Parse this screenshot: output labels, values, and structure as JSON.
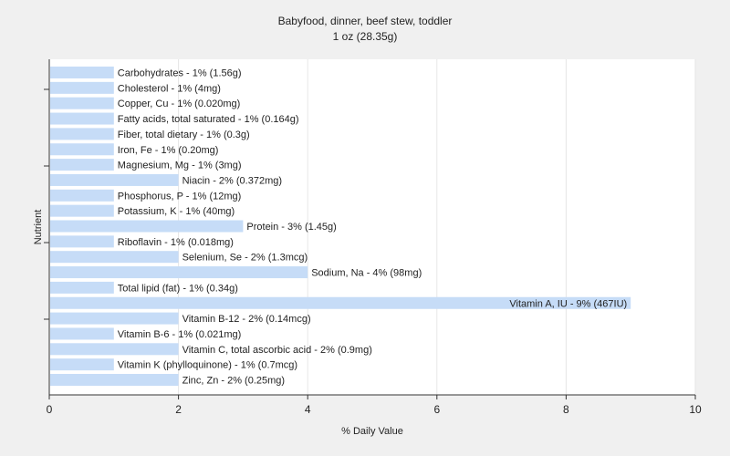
{
  "chart_data": {
    "type": "bar",
    "orientation": "horizontal",
    "title": "Babyfood, dinner, beef stew, toddler",
    "subtitle": "1 oz (28.35g)",
    "xlabel": "% Daily Value",
    "ylabel": "Nutrient",
    "xlim": [
      0,
      10
    ],
    "xticks": [
      0,
      2,
      4,
      6,
      8,
      10
    ],
    "grid": true,
    "bar_color": "#c6dcf7",
    "grid_color": "#ffffff",
    "background": "#f0f0f0",
    "categories": [
      "Carbohydrates",
      "Cholesterol",
      "Copper, Cu",
      "Fatty acids, total saturated",
      "Fiber, total dietary",
      "Iron, Fe",
      "Magnesium, Mg",
      "Niacin",
      "Phosphorus, P",
      "Potassium, K",
      "Protein",
      "Riboflavin",
      "Selenium, Se",
      "Sodium, Na",
      "Total lipid (fat)",
      "Vitamin A, IU",
      "Vitamin B-12",
      "Vitamin B-6",
      "Vitamin C, total ascorbic acid",
      "Vitamin K (phylloquinone)",
      "Zinc, Zn"
    ],
    "values": [
      1,
      1,
      1,
      1,
      1,
      1,
      1,
      2,
      1,
      1,
      3,
      1,
      2,
      4,
      1,
      9,
      2,
      1,
      2,
      1,
      2
    ],
    "labels": [
      "Carbohydrates - 1% (1.56g)",
      "Cholesterol - 1% (4mg)",
      "Copper, Cu - 1% (0.020mg)",
      "Fatty acids, total saturated - 1% (0.164g)",
      "Fiber, total dietary - 1% (0.3g)",
      "Iron, Fe - 1% (0.20mg)",
      "Magnesium, Mg - 1% (3mg)",
      "Niacin - 2% (0.372mg)",
      "Phosphorus, P - 1% (12mg)",
      "Potassium, K - 1% (40mg)",
      "Protein - 3% (1.45g)",
      "Riboflavin - 1% (0.018mg)",
      "Selenium, Se - 2% (1.3mcg)",
      "Sodium, Na - 4% (98mg)",
      "Total lipid (fat) - 1% (0.34g)",
      "Vitamin A, IU - 9% (467IU)",
      "Vitamin B-12 - 2% (0.14mcg)",
      "Vitamin B-6 - 1% (0.021mg)",
      "Vitamin C, total ascorbic acid - 2% (0.9mg)",
      "Vitamin K (phylloquinone) - 1% (0.7mcg)",
      "Zinc, Zn - 2% (0.25mg)"
    ]
  }
}
